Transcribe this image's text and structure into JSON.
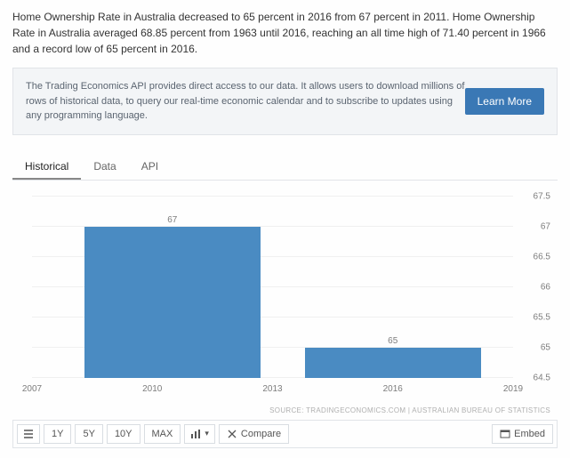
{
  "intro": "Home Ownership Rate in Australia decreased to 65 percent in 2016 from 67 percent in 2011. Home Ownership Rate in Australia averaged 68.85 percent from 1963 until 2016, reaching an all time high of 71.40 percent in 1966 and a record low of 65 percent in 2016.",
  "api_box": {
    "text": "The Trading Economics API provides direct access to our data. It allows users to download millions of rows of historical data, to query our real-time economic calendar and to subscribe to updates using any programming language.",
    "button": "Learn More"
  },
  "tabs": [
    "Historical",
    "Data",
    "API"
  ],
  "active_tab": 0,
  "chart": {
    "type": "bar",
    "y_min": 64.5,
    "y_max": 67.5,
    "y_ticks": [
      64.5,
      65,
      65.5,
      66,
      66.5,
      67,
      67.5
    ],
    "x_min": 2007,
    "x_max": 2019,
    "x_ticks": [
      2007,
      2010,
      2013,
      2016,
      2019
    ],
    "bar_color": "#4a8bc2",
    "grid_color": "#f0f0f0",
    "bars": [
      {
        "label": "67",
        "value": 67,
        "x_start": 2008.3,
        "x_end": 2012.7
      },
      {
        "label": "65",
        "value": 65,
        "x_start": 2013.8,
        "x_end": 2018.2
      }
    ]
  },
  "source": "SOURCE: TRADINGECONOMICS.COM  |  AUSTRALIAN BUREAU OF STATISTICS",
  "toolbar": {
    "ranges": [
      "1Y",
      "5Y",
      "10Y",
      "MAX"
    ],
    "compare": "Compare",
    "embed": "Embed"
  }
}
